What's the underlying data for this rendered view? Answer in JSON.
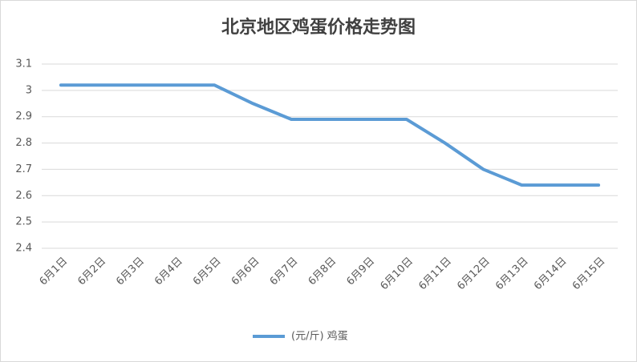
{
  "chart_data": {
    "type": "line",
    "title": "北京地区鸡蛋价格走势图",
    "categories": [
      "6月1日",
      "6月2日",
      "6月3日",
      "6月4日",
      "6月5日",
      "6月6日",
      "6月7日",
      "6月8日",
      "6月9日",
      "6月10日",
      "6月11日",
      "6月12日",
      "6月13日",
      "6月14日",
      "6月15日"
    ],
    "series": [
      {
        "name": "(元/斤) 鸡蛋",
        "color": "#5b9bd5",
        "values": [
          3.02,
          3.02,
          3.02,
          3.02,
          3.02,
          2.95,
          2.89,
          2.89,
          2.89,
          2.89,
          2.8,
          2.7,
          2.64,
          2.64,
          2.64
        ]
      }
    ],
    "ylim": [
      2.4,
      3.1
    ],
    "yticks": [
      2.4,
      2.5,
      2.6,
      2.7,
      2.8,
      2.9,
      3,
      3.1
    ],
    "grid": true,
    "legend": "bottom"
  }
}
